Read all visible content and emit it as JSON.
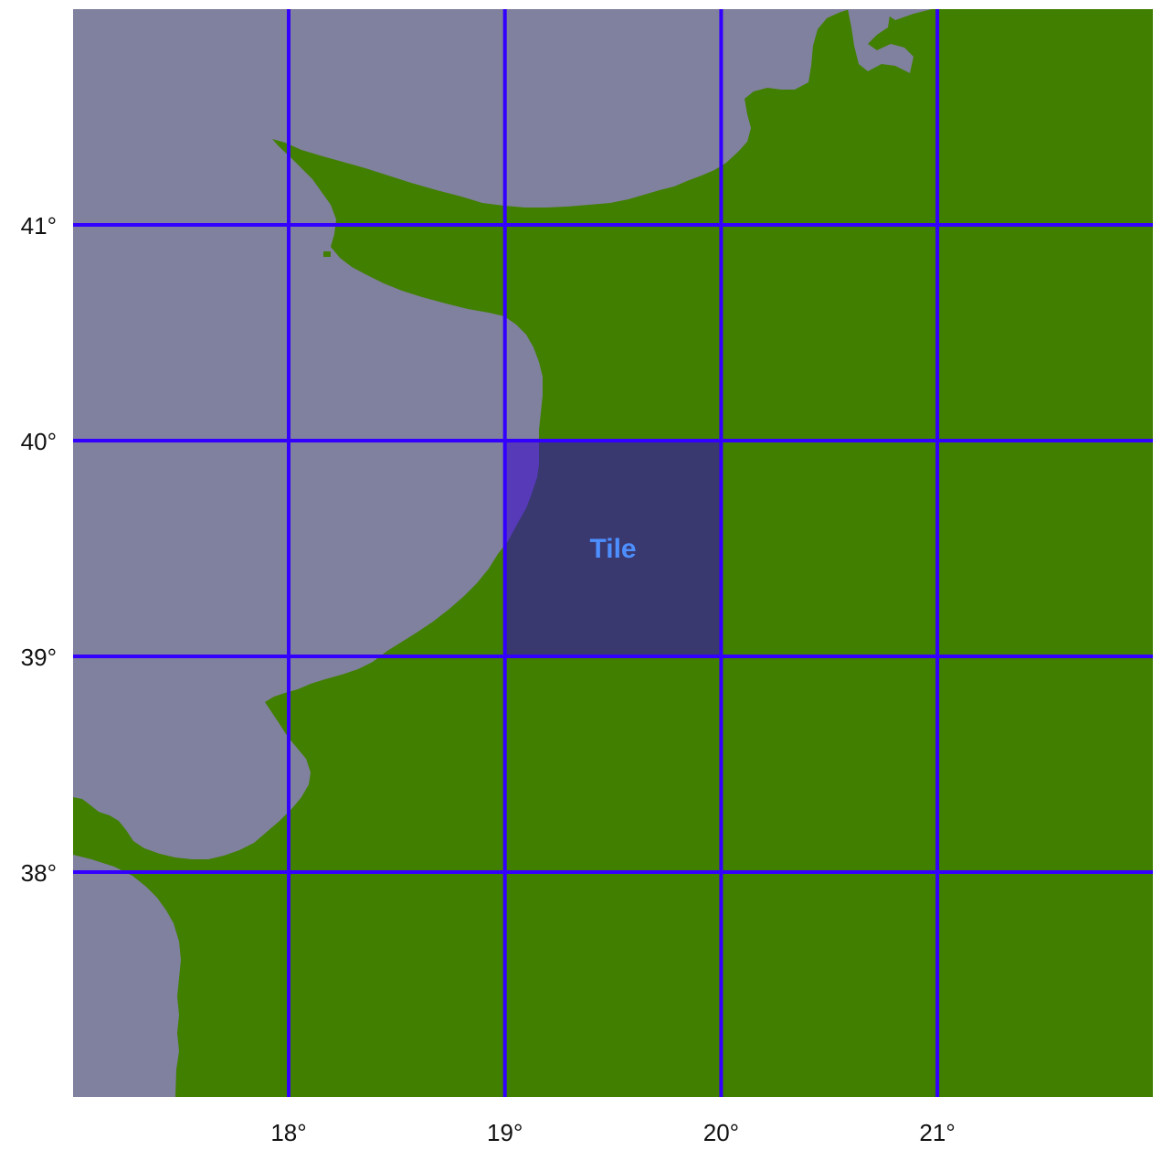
{
  "map": {
    "colors": {
      "water": "#80809f",
      "land": "#417f00",
      "grid": "#3300ff",
      "tile_fill": "#3300cc",
      "tile_label": "#4d8fff",
      "axis_text": "#111111"
    },
    "lon_ticks": [
      {
        "value": 18,
        "label": "18°"
      },
      {
        "value": 19,
        "label": "19°"
      },
      {
        "value": 20,
        "label": "20°"
      },
      {
        "value": 21,
        "label": "21°"
      }
    ],
    "lat_ticks": [
      {
        "value": 41,
        "label": "41°"
      },
      {
        "value": 40,
        "label": "40°"
      },
      {
        "value": 39,
        "label": "39°"
      },
      {
        "value": 38,
        "label": "38°"
      }
    ],
    "tile": {
      "label": "Tile",
      "lon_min": 19,
      "lon_max": 20,
      "lat_min": 39,
      "lat_max": 40
    }
  }
}
